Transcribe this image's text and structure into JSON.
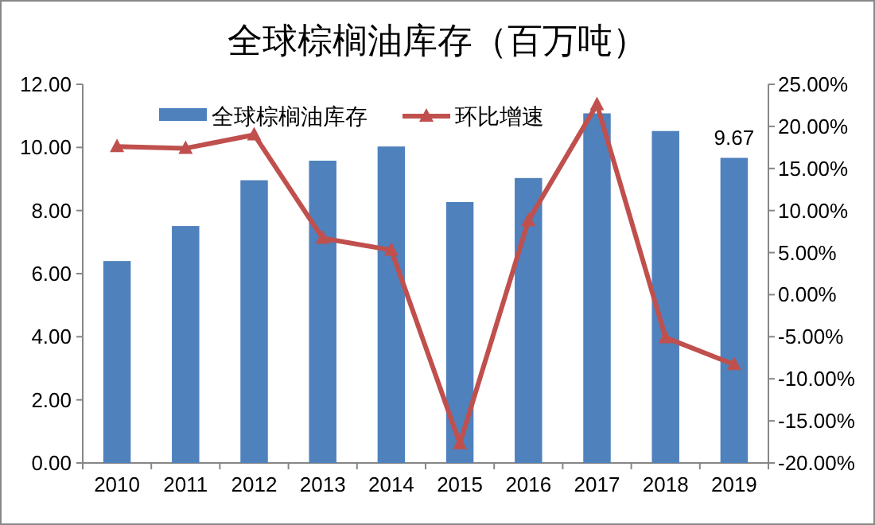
{
  "chart_data": {
    "type": "bar",
    "title": "全球棕榈油库存（百万吨）",
    "categories": [
      "2010",
      "2011",
      "2012",
      "2013",
      "2014",
      "2015",
      "2016",
      "2017",
      "2018",
      "2019"
    ],
    "series": [
      {
        "name": "全球棕榈油库存",
        "color": "#4f81bd",
        "values": [
          6.4,
          7.51,
          8.96,
          9.58,
          10.03,
          8.27,
          9.03,
          11.08,
          10.52,
          9.67
        ],
        "value_labels": [
          null,
          null,
          null,
          null,
          null,
          null,
          null,
          null,
          null,
          "9.67"
        ]
      },
      {
        "name": "环比增速",
        "type": "line",
        "axis": "y2",
        "color": "#c0504d",
        "marker": "triangle",
        "line_style": "solid",
        "values": [
          17.6,
          17.4,
          19.0,
          6.7,
          5.3,
          -17.7,
          8.8,
          22.6,
          -5.1,
          -8.3
        ]
      }
    ],
    "ylim": [
      0,
      12
    ],
    "yticks": [
      {
        "value": 0,
        "label": "0.00"
      },
      {
        "value": 2,
        "label": "2.00"
      },
      {
        "value": 4,
        "label": "4.00"
      },
      {
        "value": 6,
        "label": "6.00"
      },
      {
        "value": 8,
        "label": "8.00"
      },
      {
        "value": 10,
        "label": "10.00"
      },
      {
        "value": 12,
        "label": "12.00"
      }
    ],
    "y2lim": [
      -20,
      25
    ],
    "y2ticks": [
      {
        "value": -20,
        "label": "-20.00%"
      },
      {
        "value": -15,
        "label": "-15.00%"
      },
      {
        "value": -10,
        "label": "-10.00%"
      },
      {
        "value": -5,
        "label": "-5.00%"
      },
      {
        "value": 0,
        "label": "0.00%"
      },
      {
        "value": 5,
        "label": "5.00%"
      },
      {
        "value": 10,
        "label": "10.00%"
      },
      {
        "value": 15,
        "label": "15.00%"
      },
      {
        "value": 20,
        "label": "20.00%"
      },
      {
        "value": 25,
        "label": "25.00%"
      }
    ],
    "grid": false,
    "legend": "top"
  }
}
